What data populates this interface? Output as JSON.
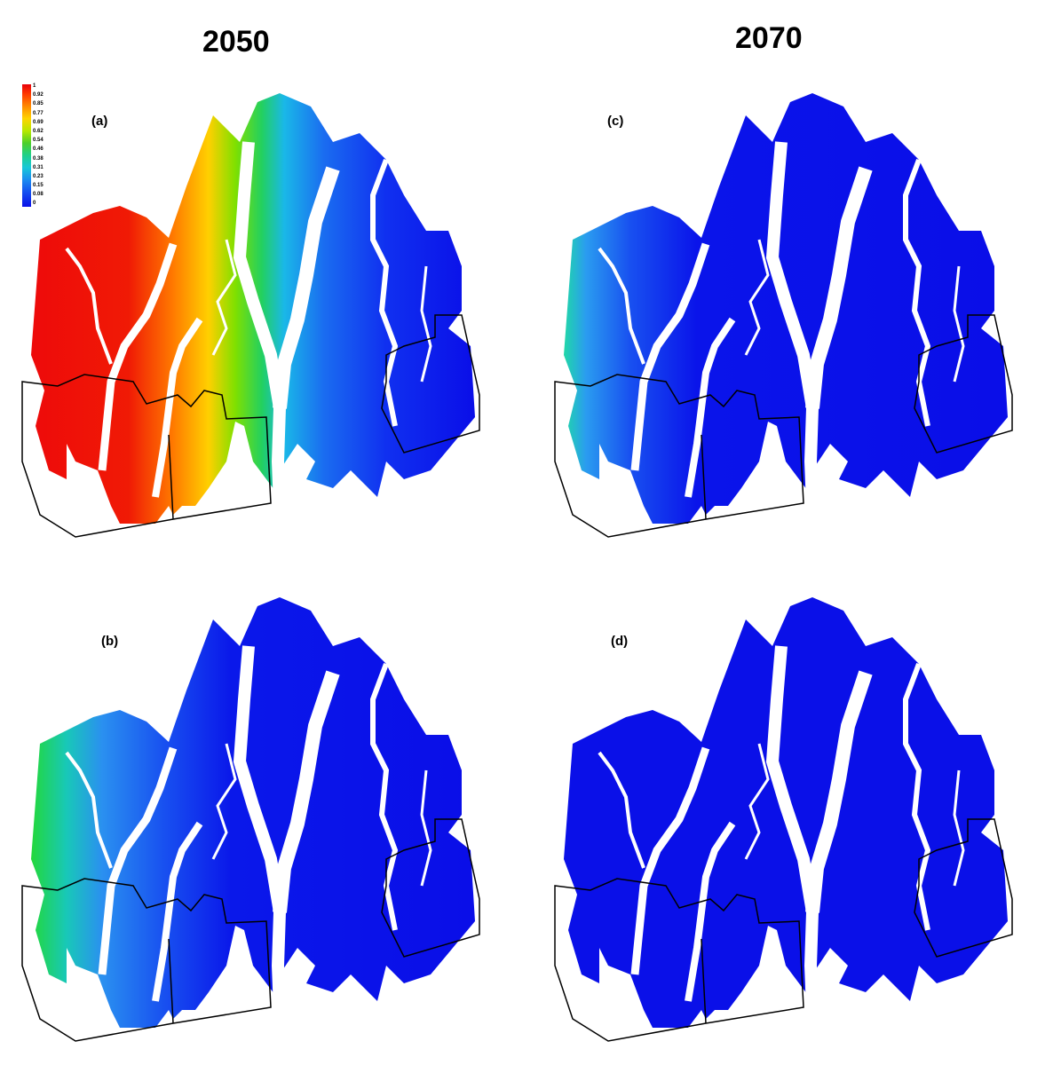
{
  "columns": {
    "left": "2050",
    "right": "2070"
  },
  "panels": {
    "a": {
      "label": "(a)"
    },
    "b": {
      "label": "(b)"
    },
    "c": {
      "label": "(c)"
    },
    "d": {
      "label": "(d)"
    }
  },
  "legend": {
    "ticks": [
      "1",
      "0.92",
      "0.85",
      "0.77",
      "0.69",
      "0.62",
      "0.54",
      "0.46",
      "0.38",
      "0.31",
      "0.23",
      "0.15",
      "0.08",
      "0"
    ],
    "colors": {
      "high": "#e8000a",
      "mid": "#4ccf2a",
      "low": "#0a10e8"
    }
  }
}
